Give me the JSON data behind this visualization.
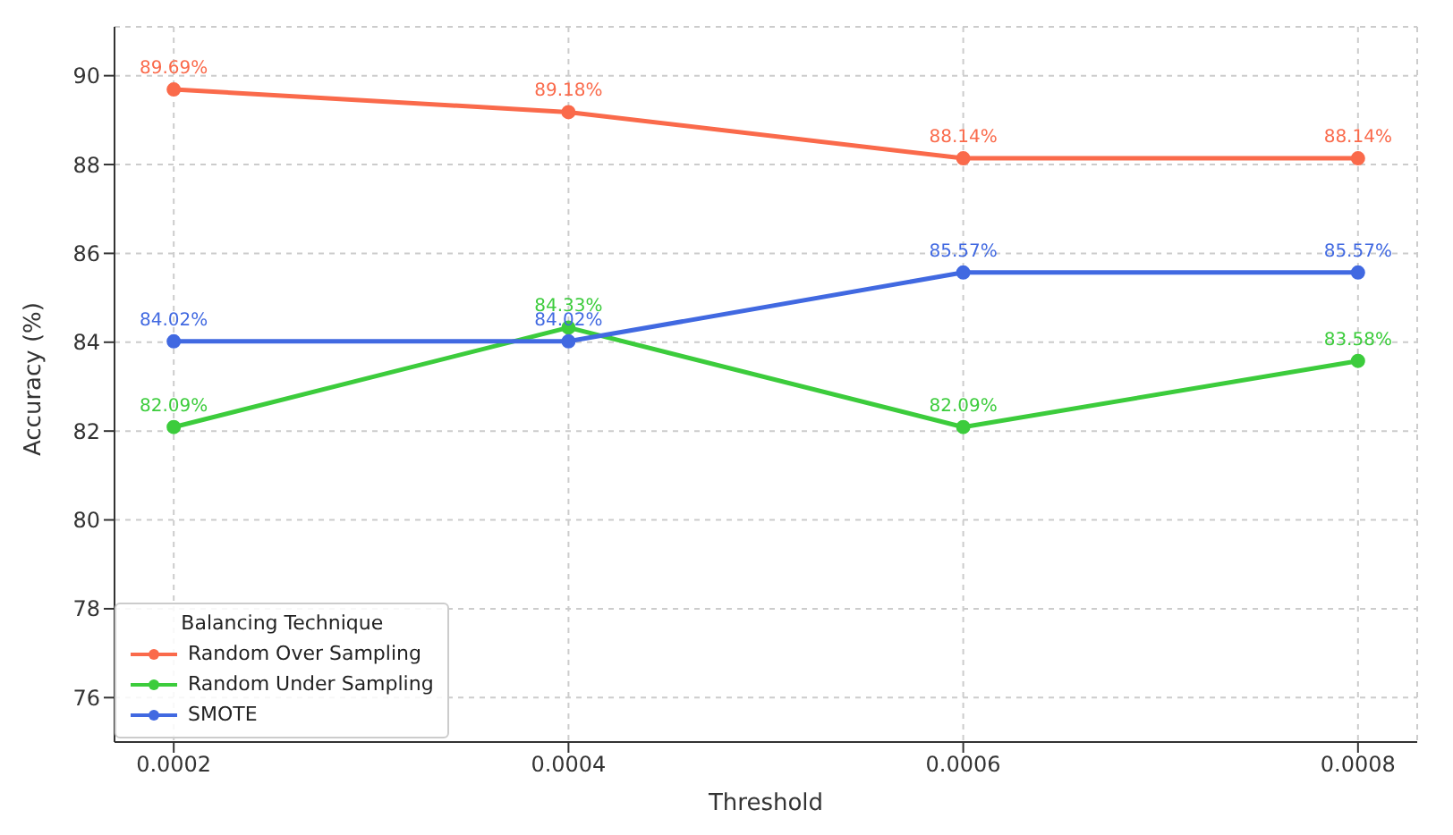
{
  "chart_data": {
    "type": "line",
    "xlabel": "Threshold",
    "ylabel": "Accuracy (%)",
    "legend_title": "Balancing Technique",
    "x": [
      0.0002,
      0.0004,
      0.0006,
      0.0008
    ],
    "xlim": [
      0.00017,
      0.00083
    ],
    "xticks": [
      0.0002,
      0.0004,
      0.0006,
      0.0008
    ],
    "ylim": [
      75,
      91.1
    ],
    "yticks": [
      76,
      78,
      80,
      82,
      84,
      86,
      88,
      90
    ],
    "grid": true,
    "legend": "bottom left",
    "marker": "circle",
    "line_style": "solid",
    "series": [
      {
        "name": "Random Over Sampling",
        "color": "#fa6a4b",
        "values": [
          89.69,
          89.18,
          88.14,
          88.14
        ],
        "value_labels": [
          "89.69%",
          "89.18%",
          "88.14%",
          "88.14%"
        ]
      },
      {
        "name": "Random Under Sampling",
        "color": "#3ccc3c",
        "values": [
          82.09,
          84.33,
          82.09,
          83.58
        ],
        "value_labels": [
          "82.09%",
          "84.33%",
          "82.09%",
          "83.58%"
        ]
      },
      {
        "name": "SMOTE",
        "color": "#4169e1",
        "values": [
          84.02,
          84.02,
          85.57,
          85.57
        ],
        "value_labels": [
          "84.02%",
          "84.02%",
          "85.57%",
          "85.57%"
        ]
      }
    ]
  }
}
